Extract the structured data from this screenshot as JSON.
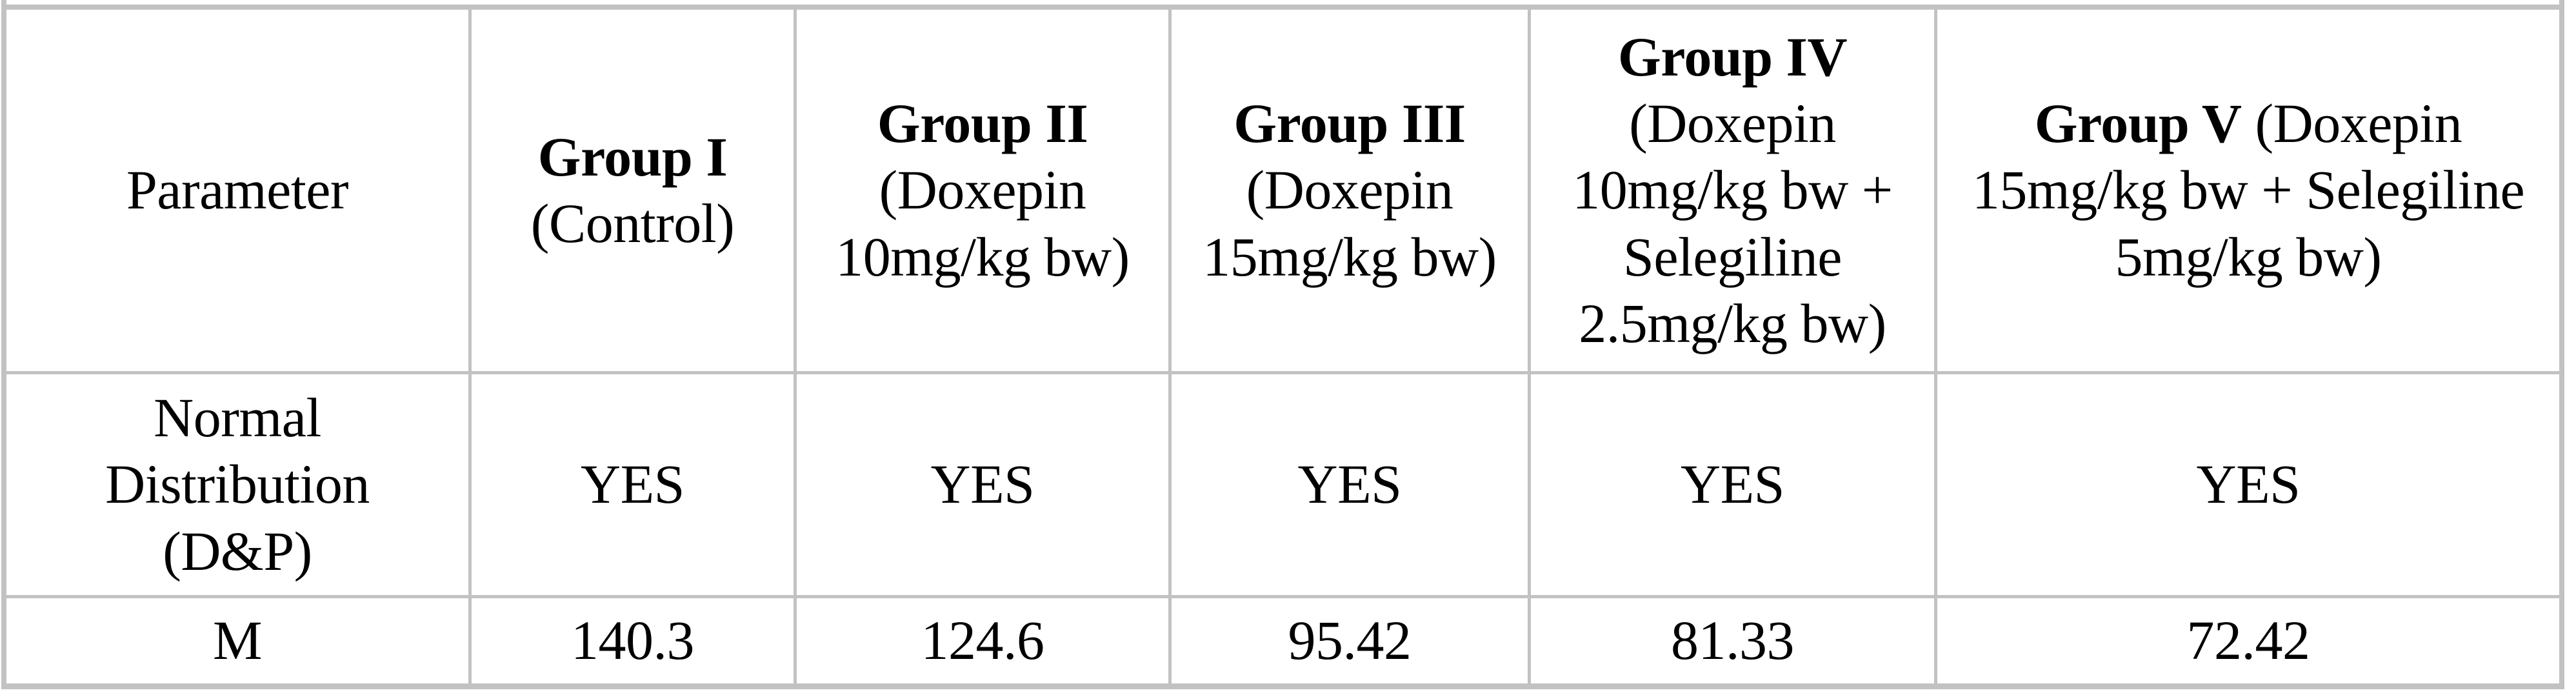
{
  "table": {
    "border_color": "#c2c2c2",
    "text_color": "#000000",
    "header": {
      "parameter_label": "Parameter",
      "groups": [
        {
          "name": "Group I",
          "sub": "(Control)"
        },
        {
          "name": "Group II",
          "sub": "(Doxepin 10mg/kg bw)"
        },
        {
          "name": "Group III",
          "sub": "(Doxepin 15mg/kg bw)"
        },
        {
          "name": "Group IV",
          "sub": "(Doxepin 10mg/kg bw + Selegiline 2.5mg/kg bw)"
        },
        {
          "name": "Group V",
          "sub": "(Doxepin 15mg/kg bw + Selegiline 5mg/kg bw)"
        }
      ]
    },
    "rows": [
      {
        "parameter": "Normal Distribution (D&P)",
        "values": [
          "YES",
          "YES",
          "YES",
          "YES",
          "YES"
        ]
      },
      {
        "parameter": "M",
        "values": [
          "140.3",
          "124.6",
          "95.42",
          "81.33",
          "72.42"
        ]
      }
    ]
  }
}
